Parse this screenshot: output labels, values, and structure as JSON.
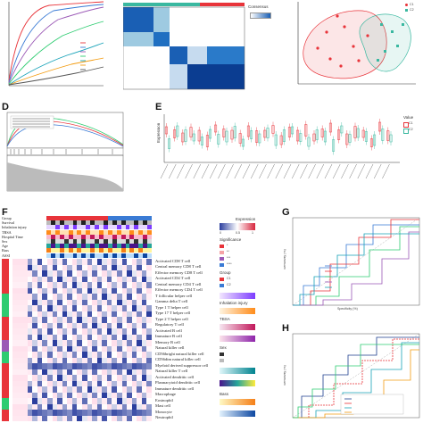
{
  "panels": {
    "D": {
      "letter": "D"
    },
    "E": {
      "letter": "E",
      "ylabel": "Expression",
      "legend_title": "Value",
      "legend": [
        "C1",
        "C2"
      ]
    },
    "F": {
      "letter": "F"
    },
    "G": {
      "letter": "G",
      "xlabel": "Specificity (%)",
      "ylabel": "Sensitivity (%)"
    },
    "H": {
      "letter": "H",
      "xlabel": "Specificity (%)",
      "ylabel": "Sensitivity (%)"
    }
  },
  "top_middle": {
    "legend_title": "Consensus"
  },
  "top_right": {
    "legend": [
      "C1",
      "C2"
    ]
  },
  "heatmap_F": {
    "annotation_rows": [
      "Group",
      "Survival",
      "Inhalation injury",
      "TBSA",
      "Hospital Time",
      "Sex",
      "Age",
      "Bass",
      "ASSI"
    ],
    "cell_rows": [
      "Activated CD8 T cell",
      "Central memory CD8 T cell",
      "Effector memory CD8 T cell",
      "Activated CD4 T cell",
      "Central memory CD4 T cell",
      "Effector memory CD4 T cell",
      "T follicular helper cell",
      "Gamma delta T cell",
      "Type 1 T helper cell",
      "Type 17 T helper cell",
      "Type 2 T helper cell",
      "Regulatory T cell",
      "Activated B cell",
      "Immature B cell",
      "Memory B cell",
      "Natural killer cell",
      "CD56bright natural killer cell",
      "CD56dim natural killer cell",
      "Myeloid derived suppressor cell",
      "Natural killer T cell",
      "Activated dendritic cell",
      "Plasmacytoid dendritic cell",
      "Immature dendritic cell",
      "Macrophage",
      "Eosinophil",
      "Mast cell",
      "Monocyte",
      "Neutrophil"
    ],
    "legend_titles": [
      "Expression",
      "Significance",
      "Group",
      "Inhalation injury",
      "TBSA",
      "Sex",
      "Bass"
    ],
    "expression_ticks": [
      "0",
      "0.5",
      "1"
    ],
    "significance_items": [
      "*",
      "**",
      "***",
      "****"
    ],
    "group_items": [
      "C1",
      "C2"
    ]
  },
  "colors": {
    "c1": "#e8343a",
    "c2": "#3ab8a0",
    "low": "#2b3e9e",
    "mid": "#ffffff",
    "high": "#d7263d"
  }
}
